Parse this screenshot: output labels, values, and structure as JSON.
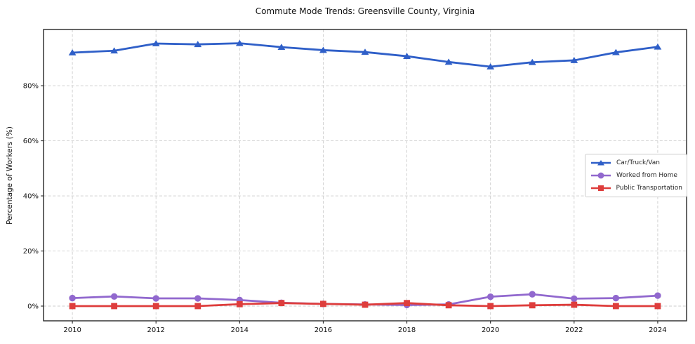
{
  "chart_data": {
    "type": "line",
    "title": "Commute Mode Trends: Greensville County, Virginia",
    "xlabel": "",
    "ylabel": "Percentage of Workers (%)",
    "x": [
      2010,
      2011,
      2012,
      2013,
      2014,
      2015,
      2016,
      2017,
      2018,
      2019,
      2020,
      2021,
      2022,
      2023,
      2024
    ],
    "xticks": [
      2010,
      2012,
      2014,
      2016,
      2018,
      2020,
      2022,
      2024
    ],
    "xtick_labels": [
      "2010",
      "2012",
      "2014",
      "2016",
      "2018",
      "2020",
      "2022",
      "2024"
    ],
    "yticks": [
      0,
      20,
      40,
      60,
      80
    ],
    "ytick_labels": [
      "0%",
      "20%",
      "40%",
      "60%",
      "80%"
    ],
    "xlim": [
      2009.31,
      2024.69
    ],
    "ylim": [
      -5.35,
      100.4
    ],
    "grid": true,
    "grid_style": "dashed",
    "legend_position": "center-right",
    "series": [
      {
        "name": "Car/Truck/Van",
        "color": "#2f5fc8",
        "marker": "triangle",
        "values": [
          92.0,
          92.7,
          95.3,
          95.0,
          95.4,
          94.0,
          92.9,
          92.2,
          90.7,
          88.6,
          86.9,
          88.5,
          89.2,
          92.1,
          94.1
        ]
      },
      {
        "name": "Worked from Home",
        "color": "#9168ce",
        "marker": "circle",
        "values": [
          2.9,
          3.5,
          2.8,
          2.8,
          2.2,
          1.2,
          0.8,
          0.6,
          0.4,
          0.6,
          3.4,
          4.3,
          2.7,
          2.9,
          3.8
        ]
      },
      {
        "name": "Public Transportation",
        "color": "#de3d3c",
        "marker": "square",
        "values": [
          0.0,
          0.0,
          0.0,
          0.0,
          0.7,
          1.1,
          0.8,
          0.5,
          1.1,
          0.3,
          0.0,
          0.3,
          0.5,
          0.0,
          0.0
        ]
      }
    ],
    "draw_order": [
      1,
      2,
      0
    ],
    "colors": {
      "axis_border": "#262626",
      "gridline": "#cdcdcd",
      "background": "#ffffff",
      "text": "#111111"
    }
  }
}
